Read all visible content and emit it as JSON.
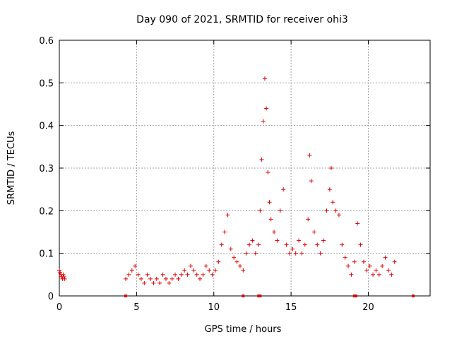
{
  "chart_data": {
    "type": "scatter",
    "title": "Day 090 of 2021, SRMTID for receiver ohi3",
    "xlabel": "GPS time / hours",
    "ylabel": "SRMTID / TECUs",
    "xlim": [
      0,
      24
    ],
    "ylim": [
      0,
      0.6
    ],
    "x_ticks": [
      0,
      5,
      10,
      15,
      20
    ],
    "y_ticks": [
      0,
      0.1,
      0.2,
      0.3,
      0.4,
      0.5,
      0.6
    ],
    "x_tick_labels": [
      "0",
      "5",
      "10",
      "15",
      "20"
    ],
    "y_tick_labels": [
      "0",
      "0.1",
      "0.2",
      "0.3",
      "0.4",
      "0.5",
      "0.6"
    ],
    "grid": true,
    "marker": "+",
    "color": "#e00000",
    "series": [
      {
        "name": "SRMTID",
        "x": [
          0.0,
          0.05,
          0.1,
          0.15,
          0.2,
          0.25,
          0.3,
          0.35,
          4.3,
          4.5,
          4.7,
          4.9,
          5.1,
          5.3,
          5.5,
          5.7,
          5.9,
          6.1,
          6.3,
          6.5,
          6.7,
          6.9,
          7.1,
          7.3,
          7.5,
          7.7,
          7.9,
          8.1,
          8.3,
          8.5,
          8.7,
          8.9,
          9.1,
          9.3,
          9.5,
          9.7,
          9.9,
          10.1,
          10.3,
          10.5,
          10.7,
          10.9,
          11.1,
          11.3,
          11.5,
          11.7,
          11.9,
          12.1,
          12.3,
          12.5,
          12.7,
          12.9,
          13.0,
          13.1,
          13.2,
          13.3,
          13.4,
          13.5,
          13.6,
          13.7,
          13.9,
          14.1,
          14.3,
          14.5,
          14.7,
          14.9,
          15.1,
          15.3,
          15.5,
          15.7,
          15.9,
          16.1,
          16.2,
          16.3,
          16.5,
          16.7,
          16.9,
          17.1,
          17.3,
          17.5,
          17.6,
          17.7,
          17.9,
          18.1,
          18.3,
          18.5,
          18.7,
          18.9,
          19.1,
          19.3,
          19.5,
          19.7,
          19.9,
          20.1,
          20.3,
          20.5,
          20.7,
          20.9,
          21.1,
          21.3,
          21.5,
          21.7
        ],
        "y": [
          0.06,
          0.055,
          0.05,
          0.045,
          0.04,
          0.05,
          0.045,
          0.04,
          0.04,
          0.05,
          0.06,
          0.07,
          0.05,
          0.04,
          0.03,
          0.05,
          0.04,
          0.03,
          0.04,
          0.03,
          0.05,
          0.04,
          0.03,
          0.04,
          0.05,
          0.04,
          0.05,
          0.06,
          0.05,
          0.07,
          0.06,
          0.05,
          0.04,
          0.05,
          0.07,
          0.06,
          0.05,
          0.06,
          0.08,
          0.12,
          0.15,
          0.19,
          0.11,
          0.09,
          0.08,
          0.07,
          0.06,
          0.1,
          0.12,
          0.13,
          0.1,
          0.12,
          0.2,
          0.32,
          0.41,
          0.51,
          0.44,
          0.29,
          0.22,
          0.18,
          0.15,
          0.13,
          0.2,
          0.25,
          0.12,
          0.1,
          0.11,
          0.1,
          0.13,
          0.1,
          0.12,
          0.18,
          0.33,
          0.27,
          0.15,
          0.12,
          0.1,
          0.13,
          0.2,
          0.25,
          0.3,
          0.22,
          0.2,
          0.19,
          0.12,
          0.09,
          0.07,
          0.05,
          0.08,
          0.17,
          0.12,
          0.08,
          0.06,
          0.07,
          0.05,
          0.06,
          0.05,
          0.07,
          0.09,
          0.06,
          0.05,
          0.08
        ]
      }
    ],
    "zero_markers_x": [
      4.3,
      11.9,
      12.9,
      13.0,
      19.1,
      19.2,
      22.9
    ]
  }
}
